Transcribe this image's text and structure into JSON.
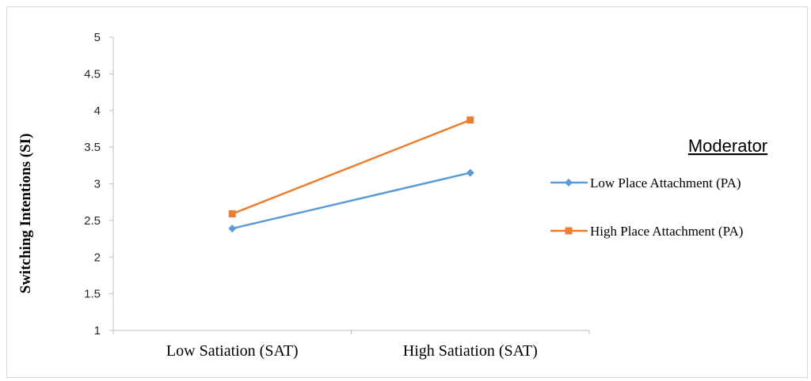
{
  "chart_data": {
    "type": "line",
    "categories": [
      "Low Satiation (SAT)",
      "High Satiation (SAT)"
    ],
    "series": [
      {
        "name": "Low Place Attachment (PA)",
        "values": [
          2.39,
          3.15
        ],
        "color": "#5b9bd5",
        "marker": "diamond"
      },
      {
        "name": "High Place Attachment (PA)",
        "values": [
          2.59,
          3.87
        ],
        "color": "#ed7d31",
        "marker": "square"
      }
    ],
    "title": "",
    "xlabel": "",
    "ylabel": "Switching Intentions (SI)",
    "ylim": [
      1,
      5
    ],
    "yticks": [
      "1",
      "1.5",
      "2",
      "2.5",
      "3",
      "3.5",
      "4",
      "4.5",
      "5"
    ],
    "grid": false,
    "legend": {
      "title": "Moderator",
      "placement": "right"
    }
  }
}
